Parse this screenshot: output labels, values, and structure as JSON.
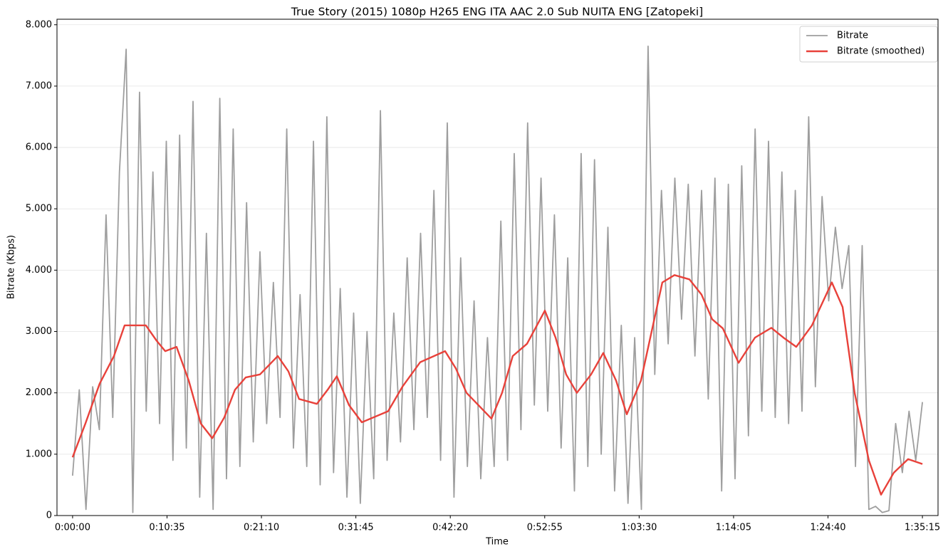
{
  "chart_data": {
    "type": "line",
    "title": "True Story (2015) 1080p H265 ENG ITA AAC 2.0 Sub NUITA ENG [Zatopeki]",
    "xlabel": "Time",
    "ylabel": "Bitrate (Kbps)",
    "xlim": [
      -105,
      5820
    ],
    "ylim": [
      0,
      8090
    ],
    "xticks": [
      {
        "value": 0,
        "label": "0:00:00"
      },
      {
        "value": 635,
        "label": "0:10:35"
      },
      {
        "value": 1270,
        "label": "0:21:10"
      },
      {
        "value": 1905,
        "label": "0:31:45"
      },
      {
        "value": 2540,
        "label": "0:42:20"
      },
      {
        "value": 3175,
        "label": "0:52:55"
      },
      {
        "value": 3810,
        "label": "1:03:30"
      },
      {
        "value": 4445,
        "label": "1:14:05"
      },
      {
        "value": 5080,
        "label": "1:24:40"
      },
      {
        "value": 5715,
        "label": "1:35:15"
      }
    ],
    "yticks": [
      0,
      {
        "value": 1000,
        "label": "1.000"
      },
      {
        "value": 2000,
        "label": "2.000"
      },
      {
        "value": 3000,
        "label": "3.000"
      },
      {
        "value": 4000,
        "label": "4.000"
      },
      {
        "value": 5000,
        "label": "5.000"
      },
      {
        "value": 6000,
        "label": "6.000"
      },
      {
        "value": 7000,
        "label": "7.000"
      },
      {
        "value": 8000,
        "label": "8.000"
      }
    ],
    "grid": "y",
    "legend": "upper right",
    "series": [
      {
        "name": "Bitrate",
        "color": "#9e9e9e",
        "x": [
          0,
          45,
          90,
          135,
          180,
          225,
          270,
          315,
          360,
          405,
          450,
          495,
          540,
          585,
          630,
          675,
          720,
          765,
          810,
          855,
          900,
          945,
          990,
          1035,
          1080,
          1125,
          1170,
          1215,
          1260,
          1305,
          1350,
          1395,
          1440,
          1485,
          1530,
          1575,
          1620,
          1665,
          1710,
          1755,
          1800,
          1845,
          1890,
          1935,
          1980,
          2025,
          2070,
          2115,
          2160,
          2205,
          2250,
          2295,
          2340,
          2385,
          2430,
          2475,
          2520,
          2565,
          2610,
          2655,
          2700,
          2745,
          2790,
          2835,
          2880,
          2925,
          2970,
          3015,
          3060,
          3105,
          3150,
          3195,
          3240,
          3285,
          3330,
          3375,
          3420,
          3465,
          3510,
          3555,
          3600,
          3645,
          3690,
          3735,
          3780,
          3825,
          3870,
          3915,
          3960,
          4005,
          4050,
          4095,
          4140,
          4185,
          4230,
          4275,
          4320,
          4365,
          4410,
          4455,
          4500,
          4545,
          4590,
          4635,
          4680,
          4725,
          4770,
          4815,
          4860,
          4905,
          4950,
          4995,
          5040,
          5085,
          5130,
          5175,
          5220,
          5265,
          5310,
          5355,
          5400,
          5445,
          5490,
          5535,
          5580,
          5625,
          5670,
          5715
        ],
        "values": [
          650,
          2050,
          100,
          2100,
          1400,
          4900,
          1600,
          5600,
          7600,
          50,
          6900,
          1700,
          5600,
          1500,
          6100,
          900,
          6200,
          1100,
          6750,
          300,
          4600,
          100,
          6800,
          600,
          6300,
          800,
          5100,
          1200,
          4300,
          1500,
          3800,
          1600,
          6300,
          1100,
          3600,
          800,
          6100,
          500,
          6500,
          700,
          3700,
          300,
          3300,
          200,
          3000,
          600,
          6600,
          900,
          3300,
          1200,
          4200,
          1400,
          4600,
          1600,
          5300,
          900,
          6400,
          300,
          4200,
          800,
          3500,
          600,
          2900,
          800,
          4800,
          900,
          5900,
          1400,
          6400,
          1800,
          5500,
          1700,
          4900,
          1100,
          4200,
          400,
          5900,
          800,
          5800,
          1000,
          4700,
          400,
          3100,
          200,
          2900,
          100,
          7650,
          2300,
          5300,
          2800,
          5500,
          3200,
          5400,
          2600,
          5300,
          1900,
          5500,
          400,
          5400,
          600,
          5700,
          1300,
          6300,
          1700,
          6100,
          1600,
          5600,
          1500,
          5300,
          1700,
          6500,
          2100,
          5200,
          3500,
          4700,
          3700,
          4400,
          800,
          4400,
          100,
          150,
          50,
          80,
          1500,
          700,
          1700,
          900,
          1850
        ]
      },
      {
        "name": "Bitrate (smoothed)",
        "color": "#e8413a",
        "x": [
          0,
          86,
          182,
          278,
          350,
          422,
          493,
          565,
          623,
          699,
          781,
          862,
          939,
          1020,
          1092,
          1164,
          1260,
          1380,
          1451,
          1523,
          1643,
          1715,
          1777,
          1859,
          1945,
          2122,
          2218,
          2338,
          2505,
          2577,
          2649,
          2817,
          2888,
          2960,
          3056,
          3176,
          3248,
          3319,
          3391,
          3487,
          3569,
          3655,
          3727,
          3822,
          3894,
          3966,
          4048,
          4148,
          4230,
          4301,
          4373,
          4479,
          4589,
          4699,
          4780,
          4867,
          4972,
          5106,
          5178,
          5259,
          5355,
          5437,
          5523,
          5619,
          5715
        ],
        "values": [
          950,
          1500,
          2150,
          2600,
          3100,
          3100,
          3100,
          2850,
          2680,
          2750,
          2200,
          1500,
          1260,
          1600,
          2050,
          2250,
          2300,
          2600,
          2350,
          1900,
          1820,
          2050,
          2270,
          1800,
          1520,
          1700,
          2100,
          2500,
          2680,
          2400,
          2000,
          1580,
          2000,
          2600,
          2800,
          3340,
          2900,
          2300,
          2000,
          2300,
          2650,
          2200,
          1650,
          2200,
          3000,
          3800,
          3920,
          3850,
          3600,
          3200,
          3050,
          2490,
          2900,
          3060,
          2900,
          2750,
          3100,
          3800,
          3400,
          2000,
          900,
          340,
          700,
          920,
          840
        ]
      }
    ]
  }
}
